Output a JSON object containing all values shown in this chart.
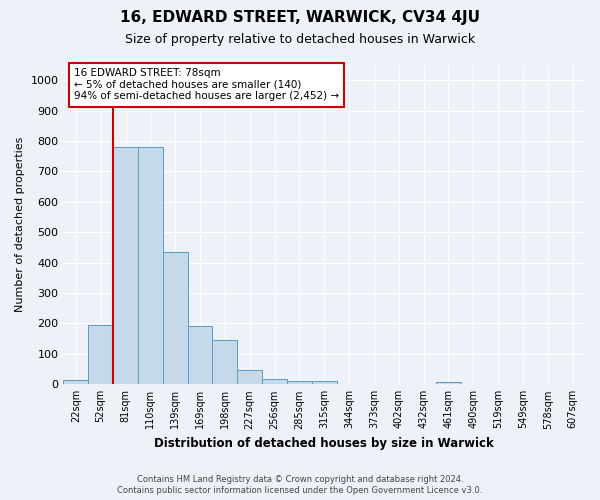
{
  "title": "16, EDWARD STREET, WARWICK, CV34 4JU",
  "subtitle": "Size of property relative to detached houses in Warwick",
  "xlabel": "Distribution of detached houses by size in Warwick",
  "ylabel": "Number of detached properties",
  "bins": [
    "22sqm",
    "52sqm",
    "81sqm",
    "110sqm",
    "139sqm",
    "169sqm",
    "198sqm",
    "227sqm",
    "256sqm",
    "285sqm",
    "315sqm",
    "344sqm",
    "373sqm",
    "402sqm",
    "432sqm",
    "461sqm",
    "490sqm",
    "519sqm",
    "549sqm",
    "578sqm",
    "607sqm"
  ],
  "values": [
    15,
    195,
    780,
    780,
    435,
    192,
    145,
    48,
    18,
    10,
    10,
    0,
    0,
    0,
    0,
    8,
    0,
    0,
    0,
    0,
    0
  ],
  "bar_color": "#c6d9ea",
  "bar_edge_color": "#5b9dc4",
  "property_line_color": "#cc0000",
  "annotation_text": "16 EDWARD STREET: 78sqm\n← 5% of detached houses are smaller (140)\n94% of semi-detached houses are larger (2,452) →",
  "annotation_box_color": "#ffffff",
  "annotation_box_edge_color": "#cc0000",
  "ylim": [
    0,
    1050
  ],
  "yticks": [
    0,
    100,
    200,
    300,
    400,
    500,
    600,
    700,
    800,
    900,
    1000
  ],
  "footnote1": "Contains HM Land Registry data © Crown copyright and database right 2024.",
  "footnote2": "Contains public sector information licensed under the Open Government Licence v3.0.",
  "background_color": "#eef2f8",
  "title_fontsize": 11,
  "subtitle_fontsize": 9,
  "ylabel_fontsize": 8,
  "xlabel_fontsize": 8.5,
  "tick_fontsize": 7,
  "ytick_fontsize": 8,
  "annot_fontsize": 7.5
}
